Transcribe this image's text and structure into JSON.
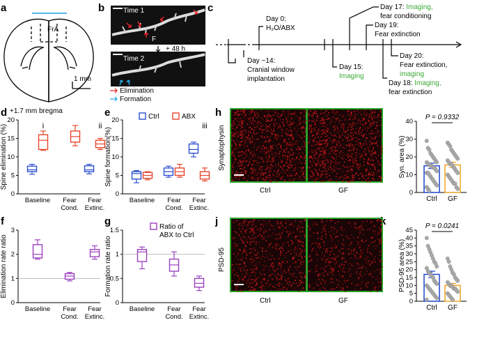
{
  "panel_labels": {
    "a": "a",
    "b": "b",
    "c": "c",
    "d": "d",
    "e": "e",
    "f": "f",
    "g": "g",
    "h": "h",
    "i": "i",
    "j": "j",
    "k": "k"
  },
  "panel_a": {
    "region": "FrA",
    "scale": "1 mm",
    "bregma": "+1.7 mm bregma"
  },
  "panel_b": {
    "time1": "Time 1",
    "time2": "Time 2",
    "interval": "+ 48 h",
    "marker": "F",
    "elimination": "Elimination",
    "formation": "Formation",
    "elim_color": "#e8242b",
    "form_color": "#27a9e1"
  },
  "panel_c": {
    "day0_line1": "Day 0:",
    "day0_line2": "H₂O/ABX",
    "day_m14_line1": "Day −14:",
    "day_m14_line2": "Cranial window",
    "day_m14_line3": "implantation",
    "day15_line1": "Day 15:",
    "day15_line2": "Imaging",
    "day17_line1a": "Day 17: ",
    "day17_line1b": "Imaging,",
    "day17_line2": "fear conditioning",
    "day18_line1a": "Day 18: ",
    "day18_line1b": "Imaging,",
    "day18_line2": "fear extinction",
    "day19_line1": "Day 19:",
    "day19_line2": "Fear extinction",
    "day20_line1": "Day 20:",
    "day20_line2": "Fear extinction,",
    "day20_line3": "imaging",
    "green": "#3aa935"
  },
  "panel_h": {
    "ylabel": "Synaptophysin",
    "left": "Ctrl",
    "right": "GF"
  },
  "panel_j": {
    "ylabel": "PSD-95",
    "left": "Ctrl",
    "right": "GF"
  },
  "chart_data": [
    {
      "id": "d",
      "type": "box",
      "ylabel": "Spine elimination (%)",
      "ylim": [
        0,
        20
      ],
      "yticks": [
        0,
        5,
        10,
        15,
        20
      ],
      "categories": [
        "Baseline",
        "Fear Cond.",
        "Fear Extinc."
      ],
      "cat_lines": [
        [
          "Baseline"
        ],
        [
          "Fear",
          "Cond."
        ],
        [
          "Fear",
          "Extinc."
        ]
      ],
      "annotations": [
        {
          "cat": 0,
          "text": "i"
        },
        {
          "cat": 2,
          "text": "ii"
        }
      ],
      "series": [
        {
          "name": "Ctrl",
          "color": "#2b4fd0",
          "boxes": [
            [
              5.3,
              6,
              6.5,
              7.5,
              8
            ],
            null,
            [
              5.4,
              6,
              6.5,
              7.6,
              8
            ]
          ]
        },
        {
          "name": "ABX",
          "color": "#e8452c",
          "boxes": [
            [
              11.8,
              12,
              14.5,
              16,
              17
            ],
            [
              13,
              14,
              15.5,
              17,
              18.5
            ],
            [
              12,
              12.5,
              13.5,
              14.5,
              15
            ]
          ]
        }
      ]
    },
    {
      "id": "e",
      "type": "box",
      "ylabel": "Spine formation(%)",
      "ylim": [
        0,
        20
      ],
      "yticks": [
        0,
        5,
        10,
        15,
        20
      ],
      "categories": [
        "Baseline",
        "Fear Cond.",
        "Fear Extinc."
      ],
      "cat_lines": [
        [
          "Baseline"
        ],
        [
          "Fear",
          "Cond."
        ],
        [
          "Fear",
          "Extinc."
        ]
      ],
      "annotations": [
        {
          "cat": 2,
          "text": "iii"
        }
      ],
      "legend": [
        "Ctrl",
        "ABX"
      ],
      "series": [
        {
          "name": "Ctrl",
          "color": "#2b4fd0",
          "boxes": [
            [
              3,
              4,
              5.5,
              6,
              6.3
            ],
            [
              4.5,
              5,
              6,
              7,
              7.5
            ],
            [
              10,
              11,
              12,
              13.5,
              14
            ]
          ]
        },
        {
          "name": "ABX",
          "color": "#e8452c",
          "boxes": [
            [
              3.8,
              4.2,
              5,
              5.8,
              6
            ],
            [
              4.5,
              5,
              6,
              7,
              8
            ],
            [
              3.5,
              4,
              5,
              6,
              7
            ]
          ]
        }
      ]
    },
    {
      "id": "f",
      "type": "box",
      "ylabel": "Elimination rate ratio",
      "ylim": [
        0,
        3
      ],
      "yticks": [
        0,
        1,
        2,
        3
      ],
      "ref": 1,
      "categories": [
        "Baseline",
        "Fear Cond.",
        "Fear Extinc."
      ],
      "cat_lines": [
        [
          "Baseline"
        ],
        [
          "Fear",
          "Cond."
        ],
        [
          "Fear",
          "Extinc."
        ]
      ],
      "series": [
        {
          "name": "Ratio of ABX to Ctrl",
          "color": "#9b3fbf",
          "boxes": [
            [
              1.8,
              1.85,
              2,
              2.4,
              2.6
            ],
            [
              0.9,
              0.97,
              1.1,
              1.2,
              1.25
            ],
            [
              1.8,
              1.9,
              2.1,
              2.2,
              2.35
            ]
          ]
        }
      ]
    },
    {
      "id": "g",
      "type": "box",
      "ylabel": "Formation rate ratio",
      "ylim": [
        0,
        1.5
      ],
      "yticks": [
        0,
        0.5,
        1,
        1.5
      ],
      "ref": 1,
      "categories": [
        "Baseline",
        "Fear Cond.",
        "Fear Extinc."
      ],
      "cat_lines": [
        [
          "Baseline"
        ],
        [
          "Fear",
          "Cond."
        ],
        [
          "Fear",
          "Extinc."
        ]
      ],
      "legend_lines": [
        "Ratio of",
        "ABX to Ctrl"
      ],
      "series": [
        {
          "name": "Ratio of ABX to Ctrl",
          "color": "#9b3fbf",
          "boxes": [
            [
              0.7,
              0.85,
              1.05,
              1.1,
              1.15
            ],
            [
              0.55,
              0.65,
              0.78,
              0.9,
              1.05
            ],
            [
              0.25,
              0.32,
              0.4,
              0.5,
              0.55
            ]
          ]
        }
      ]
    },
    {
      "id": "i",
      "type": "bar_scatter",
      "ylabel": "Syn. area (%)",
      "ylim": [
        0,
        40
      ],
      "yticks": [
        0,
        10,
        20,
        30,
        40
      ],
      "p_text": "P = 0.9332",
      "categories": [
        "Ctrl",
        "GF"
      ],
      "bars": [
        {
          "name": "Ctrl",
          "color": "#2b4fd0",
          "mean": 15,
          "sem": 1.5
        },
        {
          "name": "GF",
          "color": "#f0a830",
          "mean": 15.5,
          "sem": 1.5
        }
      ],
      "points": [
        [
          29,
          25,
          24,
          22,
          21,
          20,
          19,
          18,
          17,
          17,
          16,
          16,
          15,
          15,
          14,
          14,
          13,
          12,
          11,
          11,
          10,
          9,
          8,
          7,
          6,
          5,
          4,
          3,
          2,
          1
        ],
        [
          28,
          27,
          26,
          24,
          23,
          22,
          21,
          20,
          19,
          18,
          17,
          16,
          16,
          15,
          14,
          13,
          12,
          11,
          10,
          9,
          8,
          7,
          6,
          5,
          5,
          3,
          2
        ]
      ]
    },
    {
      "id": "k",
      "type": "bar_scatter",
      "ylabel": "PSD-95 area (%)",
      "ylim": [
        0,
        45
      ],
      "yticks": [
        0,
        5,
        10,
        15,
        20,
        25,
        30,
        35,
        40,
        45
      ],
      "p_text": "P = 0.0241",
      "categories": [
        "Ctrl",
        "GF"
      ],
      "bars": [
        {
          "name": "Ctrl",
          "color": "#2b4fd0",
          "mean": 17,
          "sem": 2
        },
        {
          "name": "GF",
          "color": "#f0a830",
          "mean": 10,
          "sem": 1.3
        }
      ],
      "points": [
        [
          40,
          35,
          33,
          31,
          29,
          27,
          25,
          24,
          22,
          21,
          19,
          18,
          17,
          16,
          15,
          13,
          12,
          11,
          10,
          9,
          8,
          7,
          6,
          5,
          4,
          3,
          2,
          1
        ],
        [
          27,
          25,
          22,
          20,
          18,
          17,
          15,
          14,
          13,
          12,
          11,
          10,
          10,
          9,
          8,
          8,
          7,
          6,
          5,
          4,
          3,
          2,
          1
        ]
      ]
    }
  ]
}
